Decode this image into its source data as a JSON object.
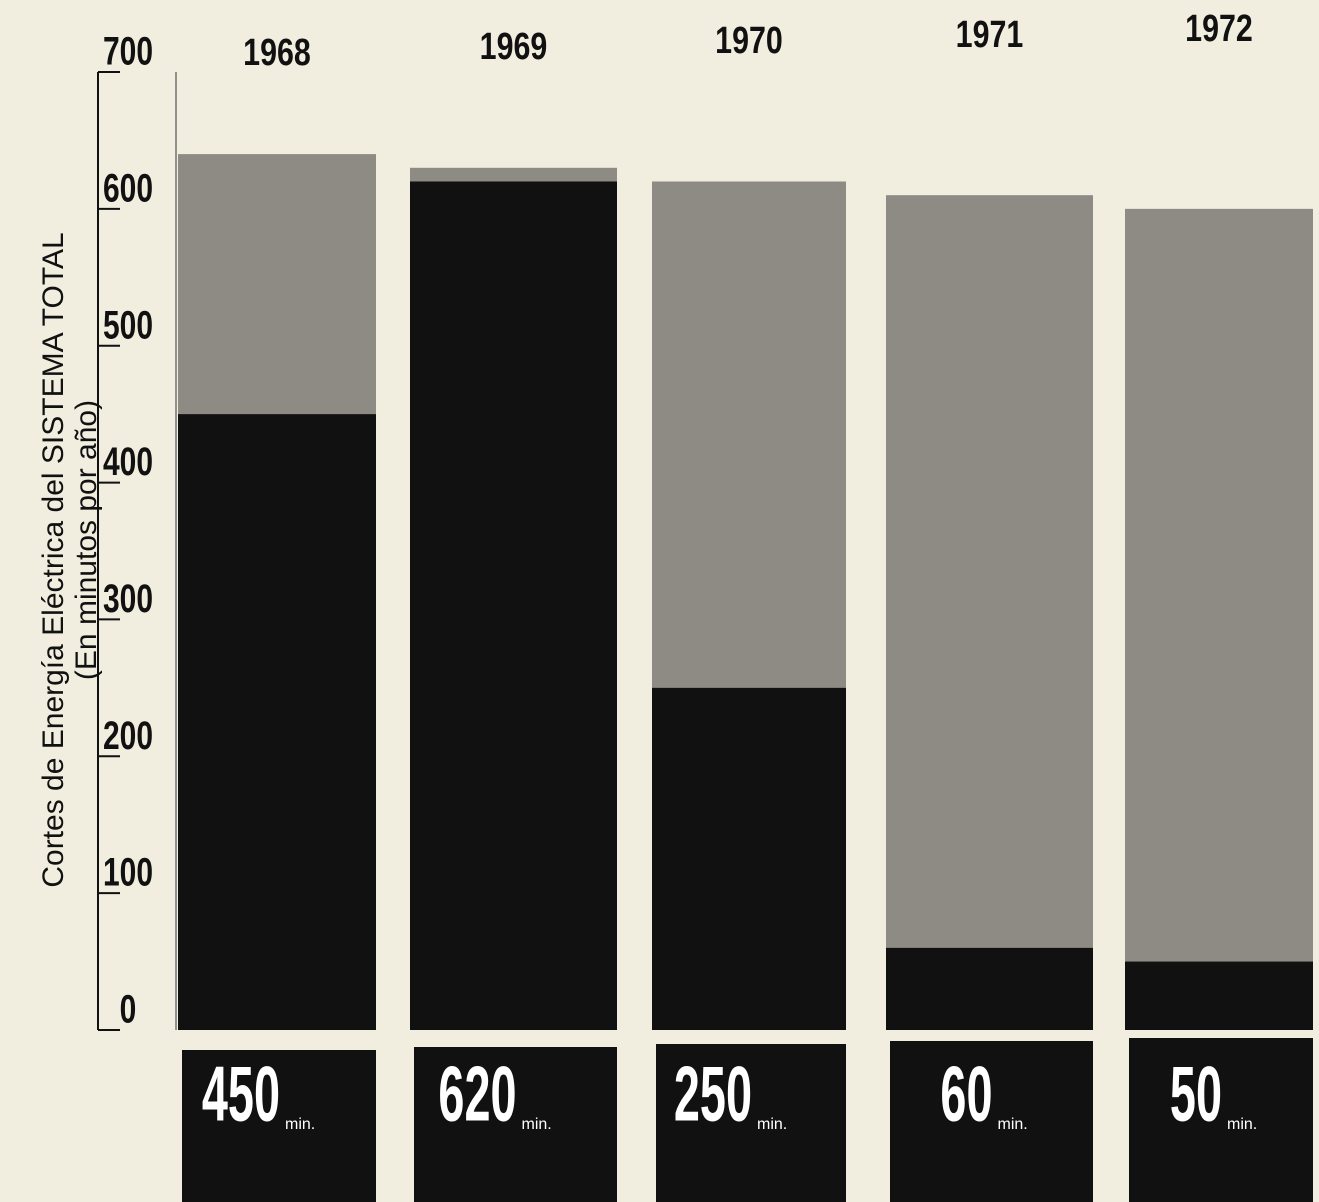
{
  "chart_data": {
    "type": "bar",
    "y_axis_label": "Cortes de Energía Eléctrica del SISTEMA TOTAL",
    "y_axis_sublabel": "(En minutos por año)",
    "categories": [
      "1968",
      "1969",
      "1970",
      "1971",
      "1972"
    ],
    "values": [
      450,
      620,
      250,
      60,
      50
    ],
    "unit": "min.",
    "color": "#111111",
    "ylim": [
      0,
      700
    ],
    "yticks": [
      0,
      100,
      200,
      300,
      400,
      500,
      600,
      700
    ]
  }
}
